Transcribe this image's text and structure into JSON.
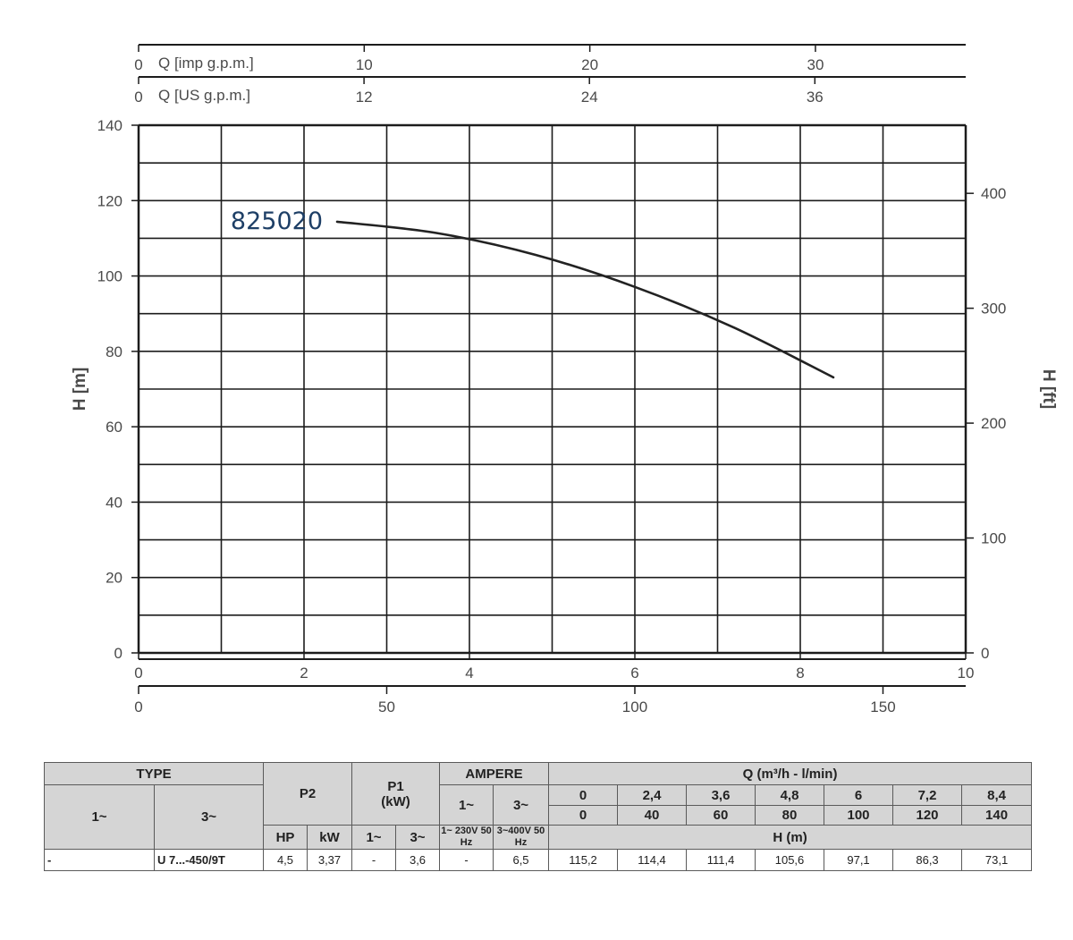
{
  "chart_data": {
    "type": "line",
    "series": [
      {
        "name": "825020",
        "x": [
          2.4,
          3.6,
          4.8,
          6.0,
          7.2,
          8.4
        ],
        "y": [
          114.4,
          111.4,
          105.6,
          97.1,
          86.3,
          73.1
        ]
      }
    ],
    "x_axis": {
      "label": "",
      "range": [
        0,
        10
      ],
      "ticks": [
        "0",
        "2",
        "4",
        "6",
        "8",
        "10"
      ]
    },
    "x_axis_lmin": {
      "ticks": [
        "0",
        "50",
        "100",
        "150"
      ],
      "tick_values": [
        0,
        50,
        100,
        150
      ],
      "range": [
        0,
        166.67
      ]
    },
    "top_axes": [
      {
        "label": "Q [imp g.p.m.]",
        "ticks": [
          "0",
          "10",
          "20",
          "30"
        ],
        "tick_values": [
          0,
          10,
          20,
          30
        ],
        "range": [
          0,
          36.66
        ]
      },
      {
        "label": "Q [US g.p.m.]",
        "ticks": [
          "0",
          "12",
          "24",
          "36"
        ],
        "tick_values": [
          0,
          12,
          24,
          36
        ],
        "range": [
          0,
          44.03
        ]
      }
    ],
    "y_axis": {
      "label": "H [m]",
      "range": [
        0,
        140
      ],
      "ticks": [
        "0",
        "20",
        "40",
        "60",
        "80",
        "100",
        "120",
        "140"
      ]
    },
    "y_axis_right": {
      "label": "H [ft]",
      "ticks": [
        "0",
        "100",
        "200",
        "300",
        "400"
      ],
      "tick_values": [
        0,
        100,
        200,
        300,
        400
      ],
      "range": [
        0,
        459.3
      ]
    },
    "grid": true
  },
  "table": {
    "type_label": "TYPE",
    "p2_label": "P2",
    "p1_label": "P1",
    "p1_unit": "(kW)",
    "ampere_label": "AMPERE",
    "q_label": "Q (m³/h - l/min)",
    "one_phase": "1~",
    "three_phase": "3~",
    "amp_1_sub": "1~ 230V 50 Hz",
    "amp_3_sub": "3~400V 50 Hz",
    "hp_label": "HP",
    "kw_label": "kW",
    "h_label": "H (m)",
    "q_m3h": [
      "0",
      "2,4",
      "3,6",
      "4,8",
      "6",
      "7,2",
      "8,4"
    ],
    "q_lmin": [
      "0",
      "40",
      "60",
      "80",
      "100",
      "120",
      "140"
    ],
    "row": {
      "type_1": "-",
      "type_3": "U 7...-450/9T",
      "hp": "4,5",
      "kw": "3,37",
      "p1_1": "-",
      "p1_3": "3,6",
      "amp_1": "-",
      "amp_3": "6,5",
      "h_values": [
        "115,2",
        "114,4",
        "111,4",
        "105,6",
        "97,1",
        "86,3",
        "73,1"
      ]
    }
  },
  "colors": {
    "grid": "#1c1c1c",
    "axis_text": "#4a4a4a",
    "curve": "#222222",
    "series_label": "#1e3f66",
    "table_header": "#d5d5d5"
  }
}
